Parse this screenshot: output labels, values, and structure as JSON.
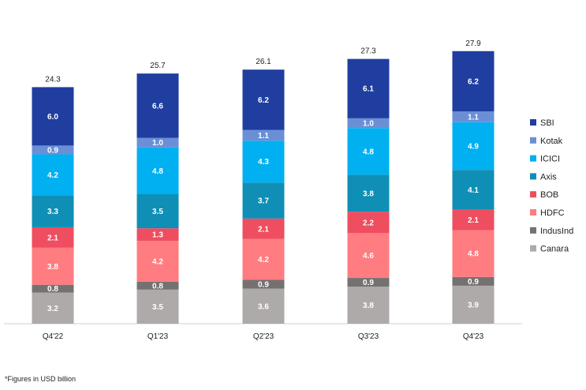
{
  "chart_data": {
    "type": "bar",
    "stacked": true,
    "categories": [
      "Q4'22",
      "Q1'23",
      "Q2'23",
      "Q3'23",
      "Q4'23"
    ],
    "totals": [
      "24.3",
      "25.7",
      "26.1",
      "27.3",
      "27.9"
    ],
    "series": [
      {
        "name": "Canara",
        "color": "#aeaaaa",
        "values": [
          3.2,
          3.5,
          3.6,
          3.8,
          3.9
        ]
      },
      {
        "name": "IndusInd",
        "color": "#767171",
        "values": [
          0.8,
          0.8,
          0.9,
          0.9,
          0.9
        ]
      },
      {
        "name": "HDFC",
        "color": "#ff7c80",
        "values": [
          3.8,
          4.2,
          4.2,
          4.6,
          4.8
        ]
      },
      {
        "name": "BOB",
        "color": "#ee4e60",
        "values": [
          2.1,
          1.3,
          2.1,
          2.2,
          2.1
        ]
      },
      {
        "name": "Axis",
        "color": "#0f8fb5",
        "values": [
          3.3,
          3.5,
          3.7,
          3.8,
          4.1
        ]
      },
      {
        "name": "ICICI",
        "color": "#00b0f0",
        "values": [
          4.2,
          4.8,
          4.3,
          4.8,
          4.9
        ]
      },
      {
        "name": "Kotak",
        "color": "#6b8fd6",
        "values": [
          0.9,
          1.0,
          1.1,
          1.0,
          1.1
        ]
      },
      {
        "name": "SBI",
        "color": "#1f3ea0",
        "values": [
          6.0,
          6.6,
          6.2,
          6.1,
          6.2
        ]
      }
    ],
    "legend_order": [
      "SBI",
      "Kotak",
      "ICICI",
      "Axis",
      "BOB",
      "HDFC",
      "IndusInd",
      "Canara"
    ],
    "legend_position": "right",
    "grid": false,
    "ylim": [
      0,
      27.9
    ]
  },
  "footnote": "*Figures in USD billion"
}
